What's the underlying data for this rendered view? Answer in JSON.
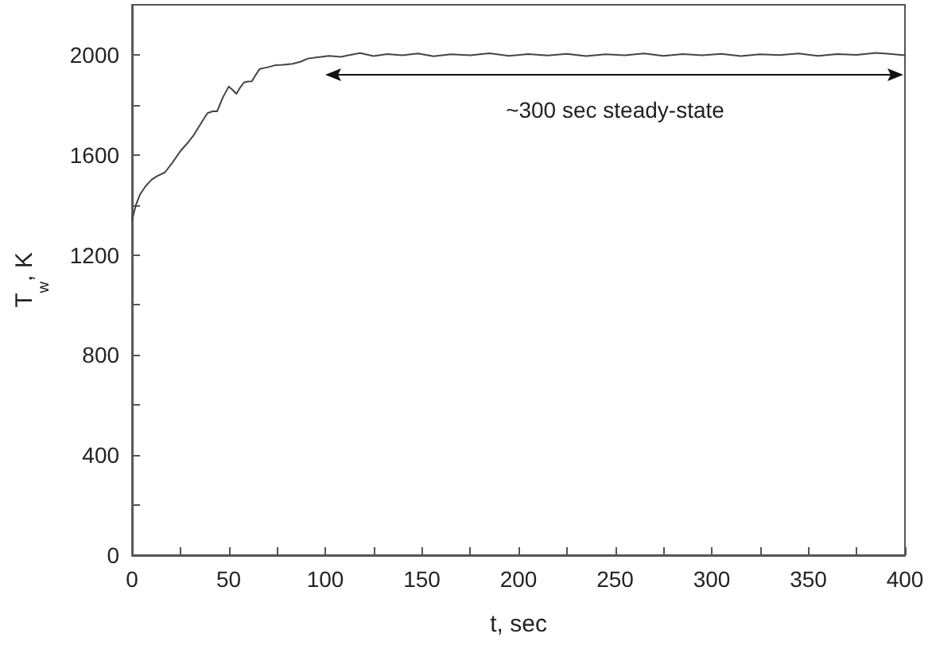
{
  "chart_data": {
    "type": "line",
    "xlabel": "t, sec",
    "ylabel": "T$_{w}$, K",
    "x": [
      0,
      2,
      4,
      7,
      10,
      13,
      17,
      21,
      25,
      29,
      32,
      36,
      39,
      42,
      44,
      47,
      50,
      52,
      54,
      56,
      58,
      60,
      62,
      64,
      66,
      70,
      74,
      78,
      83,
      87,
      91,
      96,
      102,
      108,
      113,
      118,
      125,
      132,
      140,
      148,
      156,
      165,
      175,
      185,
      195,
      205,
      215,
      225,
      235,
      245,
      255,
      265,
      275,
      285,
      295,
      305,
      315,
      325,
      335,
      345,
      355,
      365,
      375,
      385,
      392,
      400
    ],
    "series": [
      {
        "color": "#444444",
        "values": [
          1340,
          1400,
          1440,
          1475,
          1500,
          1515,
          1530,
          1570,
          1615,
          1650,
          1680,
          1730,
          1767,
          1775,
          1774,
          1830,
          1873,
          1860,
          1844,
          1870,
          1890,
          1893,
          1894,
          1920,
          1943,
          1950,
          1958,
          1960,
          1964,
          1972,
          1985,
          1990,
          1996,
          1992,
          2000,
          2007,
          1995,
          2003,
          1998,
          2005,
          1994,
          2002,
          1998,
          2006,
          1996,
          2003,
          1997,
          2004,
          1995,
          2002,
          1998,
          2005,
          1996,
          2003,
          1998,
          2004,
          1995,
          2002,
          1999,
          2005,
          1996,
          2003,
          2000,
          2008,
          2004,
          1998
        ]
      }
    ],
    "xlim": [
      0,
      400
    ],
    "xticks": [
      0,
      {
        "value": 25,
        "label": null
      },
      50,
      {
        "value": 75,
        "label": null
      },
      100,
      {
        "value": 125,
        "label": null
      },
      150,
      {
        "value": 175,
        "label": null
      },
      200,
      {
        "value": 225,
        "label": null
      },
      250,
      {
        "value": 275,
        "label": null
      },
      300,
      {
        "value": 325,
        "label": null
      },
      350,
      {
        "value": 375,
        "label": null
      },
      400
    ],
    "ylim": [
      0,
      2200
    ],
    "yticks": [
      0,
      {
        "value": 200,
        "label": null
      },
      400,
      {
        "value": 600,
        "label": null
      },
      800,
      {
        "value": 1000,
        "label": null
      },
      1200,
      {
        "value": 1400,
        "label": null
      },
      1600,
      {
        "value": 1800,
        "label": null
      },
      2000
    ],
    "annotations": [
      "~300 sec steady-state"
    ],
    "grid": false,
    "marker": "none",
    "line_style": "solid"
  }
}
